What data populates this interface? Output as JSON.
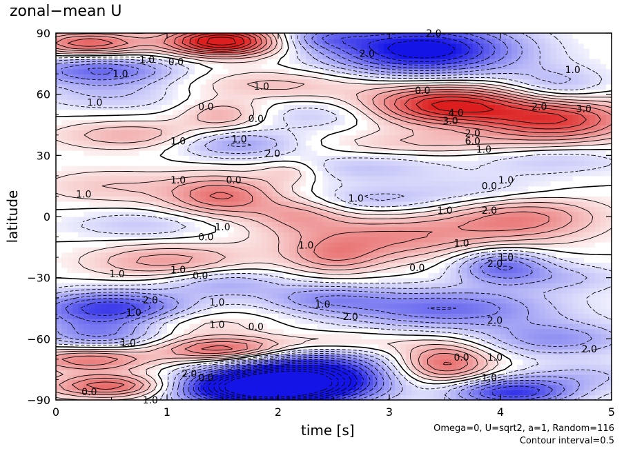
{
  "chart_data": {
    "type": "heatmap",
    "title": "zonal−mean U",
    "xlabel": "time [s]",
    "ylabel": "latitude",
    "xlim": [
      0,
      5
    ],
    "ylim": [
      -90,
      90
    ],
    "xticks": [
      0,
      1,
      2,
      3,
      4,
      5
    ],
    "yticks": [
      90,
      60,
      30,
      0,
      -30,
      -60,
      -90
    ],
    "ytick_labels": [
      "90",
      "60",
      "30",
      "0",
      "−30",
      "−60",
      "−90"
    ],
    "notes": [
      "Omega=0, U=sqrt2, a=1, Random=116",
      "Contour interval=0.5"
    ],
    "colors": {
      "positive": "#e02020",
      "negative": "#1010e0",
      "zero": "#ffffff"
    },
    "features": [
      {
        "x": 1.5,
        "y": 86,
        "value": 5.0,
        "sx": 0.35,
        "sy": 5
      },
      {
        "x": 0.3,
        "y": 85,
        "value": 3.0,
        "sx": 0.35,
        "sy": 4
      },
      {
        "x": 0.4,
        "y": 72,
        "value": -2.5,
        "sx": 0.5,
        "sy": 5
      },
      {
        "x": 3.3,
        "y": 82,
        "value": -4.5,
        "sx": 0.6,
        "sy": 9
      },
      {
        "x": 2.4,
        "y": 88,
        "value": -1.5,
        "sx": 0.3,
        "sy": 4
      },
      {
        "x": 4.5,
        "y": 63,
        "value": -1.5,
        "sx": 0.35,
        "sy": 7
      },
      {
        "x": 3.5,
        "y": 55,
        "value": 4.0,
        "sx": 0.5,
        "sy": 7
      },
      {
        "x": 4.5,
        "y": 48,
        "value": 3.5,
        "sx": 0.5,
        "sy": 8
      },
      {
        "x": 2.0,
        "y": 65,
        "value": 1.2,
        "sx": 0.6,
        "sy": 5
      },
      {
        "x": 0.5,
        "y": 60,
        "value": -1.0,
        "sx": 0.5,
        "sy": 6
      },
      {
        "x": 1.5,
        "y": 50,
        "value": 1.5,
        "sx": 0.25,
        "sy": 5
      },
      {
        "x": 2.4,
        "y": 50,
        "value": -1.0,
        "sx": 0.4,
        "sy": 5
      },
      {
        "x": 0.7,
        "y": 40,
        "value": 1.5,
        "sx": 0.5,
        "sy": 5
      },
      {
        "x": 1.6,
        "y": 36,
        "value": -1.8,
        "sx": 0.4,
        "sy": 5
      },
      {
        "x": 3.3,
        "y": 36,
        "value": 1.0,
        "sx": 0.6,
        "sy": 4
      },
      {
        "x": 4.5,
        "y": 28,
        "value": -1.0,
        "sx": 0.5,
        "sy": 5
      },
      {
        "x": 2.1,
        "y": 22,
        "value": 1.0,
        "sx": 0.2,
        "sy": 4
      },
      {
        "x": 2.8,
        "y": 24,
        "value": -1.0,
        "sx": 0.5,
        "sy": 5
      },
      {
        "x": 1.5,
        "y": 10,
        "value": 2.5,
        "sx": 0.35,
        "sy": 7
      },
      {
        "x": 2.2,
        "y": 2,
        "value": 1.5,
        "sx": 0.3,
        "sy": 6
      },
      {
        "x": 0.5,
        "y": 15,
        "value": 1.0,
        "sx": 0.5,
        "sy": 6
      },
      {
        "x": 2.8,
        "y": 8,
        "value": -1.2,
        "sx": 0.5,
        "sy": 5
      },
      {
        "x": 3.9,
        "y": 12,
        "value": -1.0,
        "sx": 0.5,
        "sy": 6
      },
      {
        "x": 4.2,
        "y": 0,
        "value": 2.2,
        "sx": 0.5,
        "sy": 8
      },
      {
        "x": 3.0,
        "y": -10,
        "value": 2.0,
        "sx": 0.7,
        "sy": 8
      },
      {
        "x": 0.8,
        "y": -4,
        "value": -1.0,
        "sx": 0.5,
        "sy": 5
      },
      {
        "x": 1.0,
        "y": -22,
        "value": 1.8,
        "sx": 0.5,
        "sy": 6
      },
      {
        "x": 2.5,
        "y": -20,
        "value": 1.5,
        "sx": 0.3,
        "sy": 6
      },
      {
        "x": 4.0,
        "y": -24,
        "value": -2.5,
        "sx": 0.3,
        "sy": 6
      },
      {
        "x": 4.6,
        "y": -30,
        "value": -1.0,
        "sx": 0.4,
        "sy": 5
      },
      {
        "x": 1.5,
        "y": -32,
        "value": -1.5,
        "sx": 0.4,
        "sy": 5
      },
      {
        "x": 0.5,
        "y": -45,
        "value": -3.5,
        "sx": 0.5,
        "sy": 6
      },
      {
        "x": 3.5,
        "y": -45,
        "value": -2.5,
        "sx": 0.7,
        "sy": 7
      },
      {
        "x": 2.4,
        "y": -40,
        "value": -1.5,
        "sx": 0.4,
        "sy": 5
      },
      {
        "x": 1.2,
        "y": -52,
        "value": 1.0,
        "sx": 0.5,
        "sy": 5
      },
      {
        "x": 0.4,
        "y": -58,
        "value": -2.0,
        "sx": 0.4,
        "sy": 5
      },
      {
        "x": 1.5,
        "y": -65,
        "value": 3.0,
        "sx": 0.4,
        "sy": 4
      },
      {
        "x": 2.5,
        "y": -62,
        "value": 1.2,
        "sx": 0.5,
        "sy": 4
      },
      {
        "x": 3.5,
        "y": -72,
        "value": 2.8,
        "sx": 0.3,
        "sy": 7
      },
      {
        "x": 4.5,
        "y": -60,
        "value": -1.8,
        "sx": 0.5,
        "sy": 6
      },
      {
        "x": 0.3,
        "y": -70,
        "value": 2.5,
        "sx": 0.4,
        "sy": 4
      },
      {
        "x": 0.5,
        "y": -83,
        "value": 3.0,
        "sx": 0.4,
        "sy": 4
      },
      {
        "x": 1.8,
        "y": -84,
        "value": -6.0,
        "sx": 0.5,
        "sy": 6
      },
      {
        "x": 2.3,
        "y": -78,
        "value": -4.5,
        "sx": 0.5,
        "sy": 9
      },
      {
        "x": 4.1,
        "y": -86,
        "value": -3.5,
        "sx": 0.4,
        "sy": 5
      },
      {
        "x": 4.8,
        "y": -78,
        "value": -1.0,
        "sx": 0.4,
        "sy": 5
      }
    ],
    "contour_labels": [
      {
        "text": "1.0",
        "x": 0.82,
        "y": 77
      },
      {
        "text": "0.0",
        "x": 1.08,
        "y": 76
      },
      {
        "text": "1.0",
        "x": 0.58,
        "y": 70
      },
      {
        "text": "2.0",
        "x": 2.8,
        "y": 80
      },
      {
        "text": "2.0",
        "x": 3.4,
        "y": 90
      },
      {
        "text": "1.0",
        "x": 4.65,
        "y": 72
      },
      {
        "text": "1.0",
        "x": 1.85,
        "y": 64
      },
      {
        "text": "0.0",
        "x": 3.3,
        "y": 62
      },
      {
        "text": "1.0",
        "x": 0.35,
        "y": 56
      },
      {
        "text": "0.0",
        "x": 1.35,
        "y": 54
      },
      {
        "text": "0.0",
        "x": 1.8,
        "y": 48
      },
      {
        "text": "2.0",
        "x": 4.35,
        "y": 54
      },
      {
        "text": "3.0",
        "x": 4.75,
        "y": 53
      },
      {
        "text": "4.0",
        "x": 3.6,
        "y": 51
      },
      {
        "text": "3.0",
        "x": 3.55,
        "y": 47
      },
      {
        "text": "2.0",
        "x": 3.75,
        "y": 41
      },
      {
        "text": "6.0",
        "x": 3.75,
        "y": 37
      },
      {
        "text": "1.0",
        "x": 1.1,
        "y": 37
      },
      {
        "text": "1.0",
        "x": 1.65,
        "y": 38
      },
      {
        "text": "1.0",
        "x": 3.85,
        "y": 33
      },
      {
        "text": "2.0",
        "x": 1.95,
        "y": 31
      },
      {
        "text": "1.0",
        "x": 1.1,
        "y": 18
      },
      {
        "text": "0.0",
        "x": 1.6,
        "y": 18
      },
      {
        "text": "0.0",
        "x": 3.9,
        "y": 15
      },
      {
        "text": "1.0",
        "x": 4.05,
        "y": 18
      },
      {
        "text": "1.0",
        "x": 0.25,
        "y": 11
      },
      {
        "text": "1.0",
        "x": 2.7,
        "y": 9
      },
      {
        "text": "2.0",
        "x": 3.9,
        "y": 3
      },
      {
        "text": "1.0",
        "x": 3.5,
        "y": 3
      },
      {
        "text": "1.0",
        "x": 1.5,
        "y": -5
      },
      {
        "text": "0.0",
        "x": 1.35,
        "y": -10
      },
      {
        "text": "1.0",
        "x": 2.25,
        "y": -14
      },
      {
        "text": "1.0",
        "x": 3.65,
        "y": -13
      },
      {
        "text": "1.0",
        "x": 0.55,
        "y": -28
      },
      {
        "text": "1.0",
        "x": 1.1,
        "y": -26
      },
      {
        "text": "0.0",
        "x": 1.3,
        "y": -29
      },
      {
        "text": "0.0",
        "x": 3.25,
        "y": -25
      },
      {
        "text": "2.0",
        "x": 3.95,
        "y": -23
      },
      {
        "text": "1.0",
        "x": 4.05,
        "y": -20
      },
      {
        "text": "1.0",
        "x": 1.45,
        "y": -42
      },
      {
        "text": "1.0",
        "x": 2.4,
        "y": -43
      },
      {
        "text": "2.0",
        "x": 0.85,
        "y": -41
      },
      {
        "text": "1.0",
        "x": 0.7,
        "y": -47
      },
      {
        "text": "2.0",
        "x": 2.65,
        "y": -49
      },
      {
        "text": "1.0",
        "x": 1.45,
        "y": -53
      },
      {
        "text": "0.0",
        "x": 1.8,
        "y": -54
      },
      {
        "text": "2.0",
        "x": 3.95,
        "y": -51
      },
      {
        "text": "1.0",
        "x": 0.65,
        "y": -62
      },
      {
        "text": "2.0",
        "x": 4.8,
        "y": -65
      },
      {
        "text": "0.0",
        "x": 3.65,
        "y": -69
      },
      {
        "text": "1.0",
        "x": 3.95,
        "y": -69
      },
      {
        "text": "2.0",
        "x": 1.2,
        "y": -77
      },
      {
        "text": "0.0",
        "x": 1.35,
        "y": -79
      },
      {
        "text": "1.0",
        "x": 3.9,
        "y": -79
      },
      {
        "text": "0.0",
        "x": 0.3,
        "y": -86
      },
      {
        "text": "1.0",
        "x": 0.85,
        "y": -90
      }
    ]
  }
}
